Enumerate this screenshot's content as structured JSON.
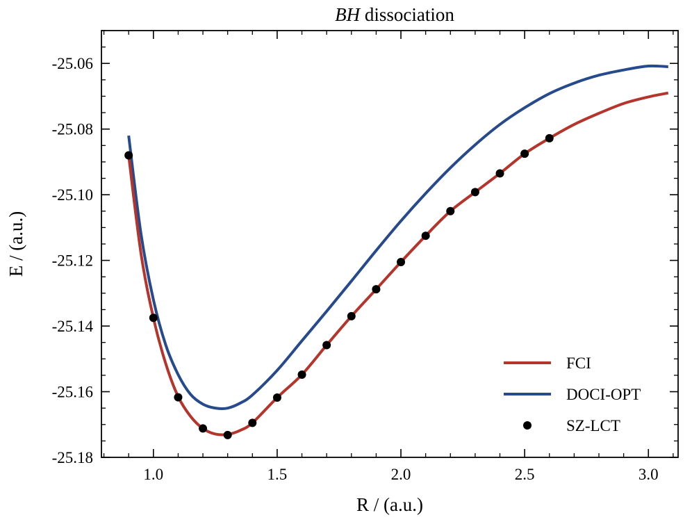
{
  "chart_data": {
    "type": "line",
    "title_italic": "BH",
    "title_rest": "dissociation",
    "xlabel": "R / (a.u.)",
    "ylabel": "E / (a.u.)",
    "xlim": [
      0.79,
      3.12
    ],
    "ylim": [
      -25.18,
      -25.05
    ],
    "xticks": [
      1.0,
      1.5,
      2.0,
      2.5,
      3.0
    ],
    "xtick_labels": [
      "1.0",
      "1.5",
      "2.0",
      "2.5",
      "3.0"
    ],
    "yticks": [
      -25.18,
      -25.16,
      -25.14,
      -25.12,
      -25.1,
      -25.08,
      -25.06
    ],
    "ytick_labels": [
      "-25.18",
      "-25.16",
      "-25.14",
      "-25.12",
      "-25.10",
      "-25.08",
      "-25.06"
    ],
    "legend_position": "lower-right",
    "series": [
      {
        "name": "FCI",
        "kind": "line",
        "color": "#b5342b",
        "x": [
          0.9,
          0.95,
          1.0,
          1.05,
          1.1,
          1.15,
          1.2,
          1.25,
          1.3,
          1.35,
          1.4,
          1.5,
          1.6,
          1.7,
          1.8,
          1.9,
          2.0,
          2.1,
          2.2,
          2.3,
          2.4,
          2.5,
          2.6,
          2.7,
          2.8,
          2.9,
          3.0,
          3.08
        ],
        "y": [
          -25.088,
          -25.118,
          -25.1375,
          -25.1515,
          -25.1615,
          -25.1675,
          -25.1712,
          -25.1729,
          -25.173,
          -25.1718,
          -25.1695,
          -25.1618,
          -25.1548,
          -25.1458,
          -25.137,
          -25.1288,
          -25.1205,
          -25.1125,
          -25.105,
          -25.0992,
          -25.0935,
          -25.0875,
          -25.0828,
          -25.0786,
          -25.0752,
          -25.0722,
          -25.0702,
          -25.069
        ]
      },
      {
        "name": "DOCI-OPT",
        "kind": "line",
        "color": "#264a8c",
        "x": [
          0.9,
          0.95,
          1.0,
          1.05,
          1.1,
          1.15,
          1.2,
          1.25,
          1.3,
          1.35,
          1.4,
          1.5,
          1.6,
          1.7,
          1.8,
          1.9,
          2.0,
          2.1,
          2.2,
          2.3,
          2.4,
          2.5,
          2.6,
          2.7,
          2.8,
          2.9,
          3.0,
          3.08
        ],
        "y": [
          -25.082,
          -25.112,
          -25.132,
          -25.1458,
          -25.1548,
          -25.1608,
          -25.1638,
          -25.165,
          -25.165,
          -25.1635,
          -25.161,
          -25.1535,
          -25.1445,
          -25.1355,
          -25.1263,
          -25.117,
          -25.108,
          -25.0996,
          -25.0918,
          -25.0848,
          -25.0786,
          -25.0735,
          -25.0692,
          -25.066,
          -25.0636,
          -25.062,
          -25.0608,
          -25.061
        ]
      },
      {
        "name": "SZ-LCT",
        "kind": "scatter",
        "color": "#000000",
        "x": [
          0.9,
          1.0,
          1.1,
          1.2,
          1.3,
          1.4,
          1.5,
          1.6,
          1.7,
          1.8,
          1.9,
          2.0,
          2.1,
          2.2,
          2.3,
          2.4,
          2.5,
          2.6
        ],
        "y": [
          -25.088,
          -25.1375,
          -25.1617,
          -25.1712,
          -25.1732,
          -25.1695,
          -25.1618,
          -25.1548,
          -25.1458,
          -25.137,
          -25.1288,
          -25.1205,
          -25.1125,
          -25.105,
          -25.0992,
          -25.0935,
          -25.0875,
          -25.0828
        ]
      }
    ]
  }
}
